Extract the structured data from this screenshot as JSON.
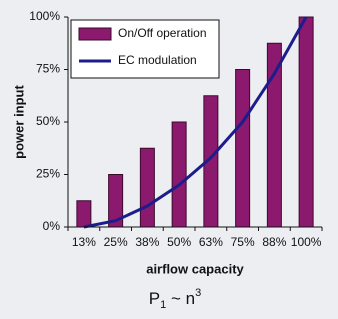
{
  "chart_data": {
    "type": "bar",
    "x_label": "airflow capacity",
    "y_label": "power input",
    "formula": [
      "P",
      "1",
      " ~ n",
      "3"
    ],
    "categories": [
      "13%",
      "25%",
      "38%",
      "50%",
      "63%",
      "75%",
      "88%",
      "100%"
    ],
    "series": [
      {
        "name": "On/Off operation",
        "type": "bar",
        "color": "#8b1a6e",
        "values": [
          12.5,
          25,
          37.5,
          50,
          62.5,
          75,
          87.5,
          100
        ]
      },
      {
        "name": "EC modulation",
        "type": "line",
        "color": "#1c1c8c",
        "values": [
          0,
          3,
          10,
          20,
          33,
          50,
          73,
          100
        ]
      }
    ],
    "ylim": [
      0,
      100
    ],
    "yticks": [
      {
        "value": 0,
        "label": "0%"
      },
      {
        "value": 25,
        "label": "25%"
      },
      {
        "value": 50,
        "label": "50%"
      },
      {
        "value": 75,
        "label": "75%"
      },
      {
        "value": 100,
        "label": "100%"
      }
    ],
    "legend": "top-left"
  }
}
